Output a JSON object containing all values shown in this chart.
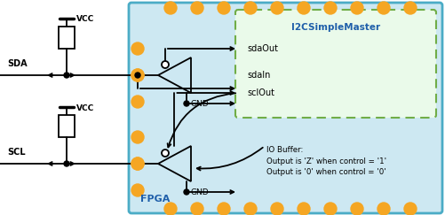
{
  "fig_w": 5.01,
  "fig_h": 2.43,
  "dpi": 100,
  "bg": "#ffffff",
  "fpga_bg": "#cde8f2",
  "fpga_edge": "#4bacc6",
  "i2c_bg": "#eafaea",
  "i2c_edge": "#70ad47",
  "orange": "#f5a623",
  "black": "#000000",
  "blue": "#1f5faa",
  "title_i2c": "I2CSimpleMaster",
  "lbl_fpga": "FPGA",
  "lbl_vcc": "VCC",
  "lbl_gnd": "GND",
  "lbl_sda": "SDA",
  "lbl_scl": "SCL",
  "lbl_sdaout": "sdaOut",
  "lbl_sdain": "sdaIn",
  "lbl_sclout": "sclOut",
  "lbl_iobuf": "IO Buffer:\nOutput is 'Z' when control = '1'\nOutput is '0' when control = '0'"
}
